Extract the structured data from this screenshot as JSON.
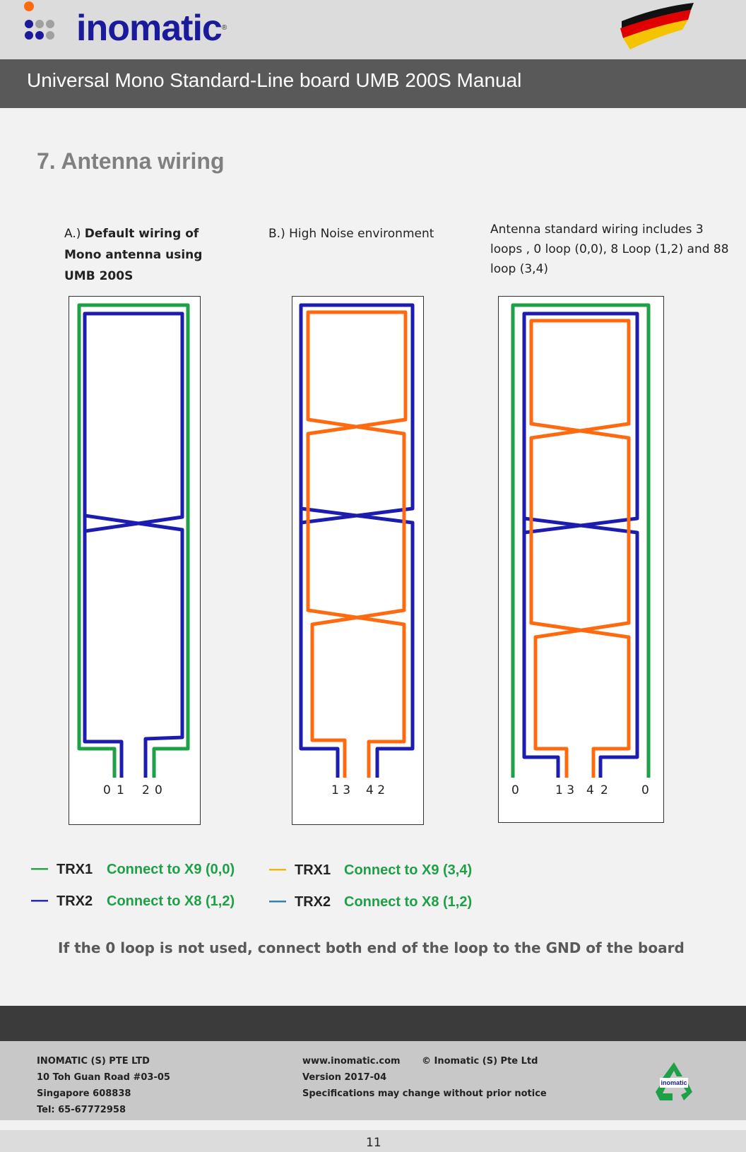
{
  "header": {
    "logo_text": "inomatic",
    "logo_registered": "®",
    "title": "Universal Mono Standard-Line board UMB 200S Manual"
  },
  "section": {
    "heading": "7. Antenna wiring"
  },
  "captions": {
    "a_prefix": "A.) ",
    "a_bold": "Default wiring of Mono antenna using UMB 200S",
    "b": "B.) High Noise environment",
    "c": "Antenna standard wiring includes 3 loops , 0 loop (0,0), 8 Loop (1,2) and  88 loop (3,4)"
  },
  "diagrams": {
    "a_pins": [
      "0",
      "1",
      "2",
      "0"
    ],
    "b_pins": [
      "1 3",
      "4 2"
    ],
    "c_pins": [
      "0",
      "1 3",
      "4",
      "2",
      "0"
    ]
  },
  "legend_left": [
    {
      "name": "TRX1",
      "connection": "Connect to X9 (0,0)",
      "color": "#1ea046"
    },
    {
      "name": "TRX2",
      "connection": "Connect to X8 (1,2)",
      "color": "#1c1cb0"
    }
  ],
  "legend_right": [
    {
      "name": "TRX1",
      "connection": "Connect to X9 (3,4)",
      "color": "#f2b400"
    },
    {
      "name": "TRX2",
      "connection": "Connect to X8 (1,2)",
      "color": "#2a7ac0"
    }
  ],
  "note": "If the 0 loop is not used, connect both end of the loop to the GND of the board",
  "colors": {
    "green": "#1ea046",
    "blue": "#1c1cb0",
    "orange": "#ff6a10"
  },
  "footer": {
    "company": "INOMATIC (S) PTE LTD",
    "address": "10 Toh Guan Road #03-05",
    "city": "Singapore 608838",
    "tel": "Tel: 65-67772958",
    "website": "www.inomatic.com",
    "copyright": "© Inomatic (S) Pte Ltd",
    "version": "Version 2017-04",
    "disclaimer": "Specifications may change without prior notice",
    "recycle_logo_text": "inomatic"
  },
  "page_number": "11"
}
